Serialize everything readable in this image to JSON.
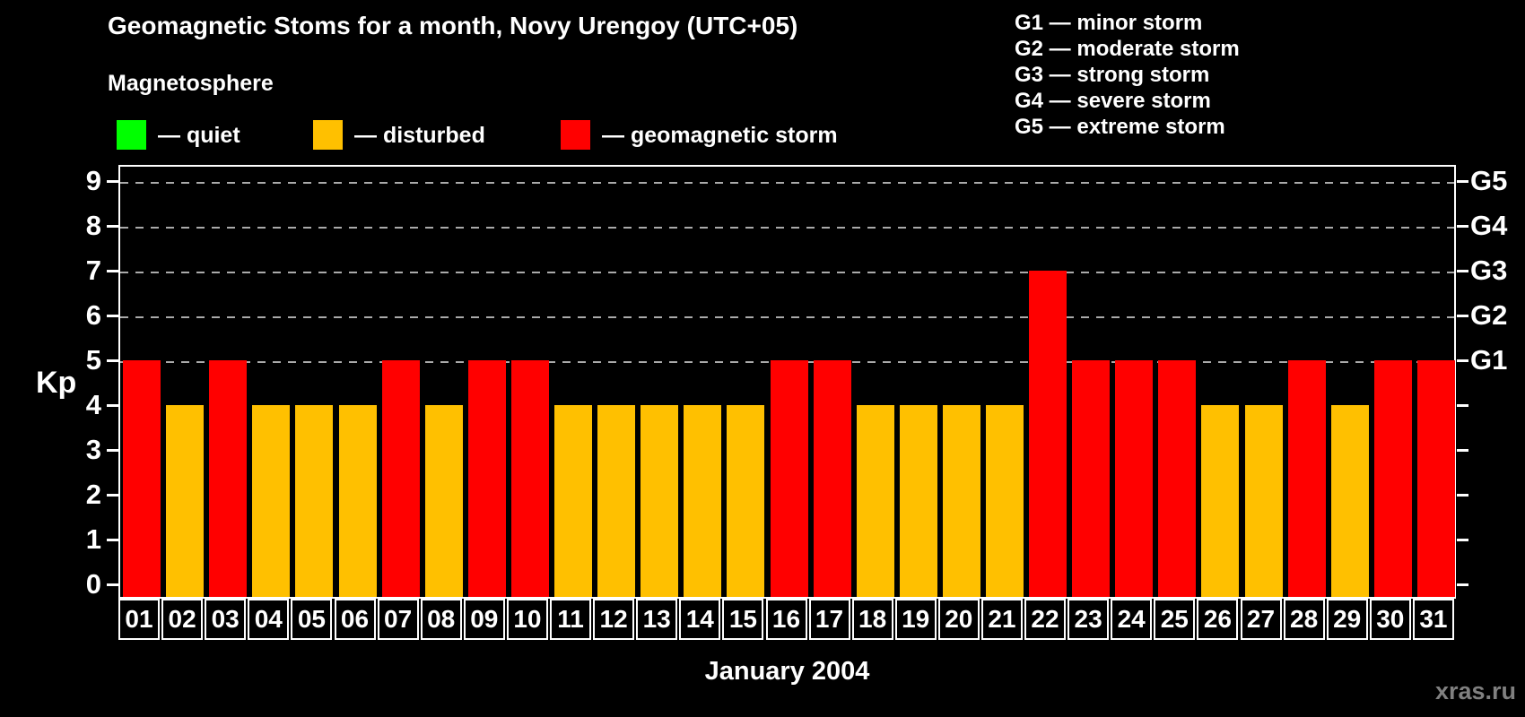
{
  "title": "Geomagnetic Stoms for a month, Novy Urengoy (UTC+05)",
  "legend": {
    "heading": "Magnetosphere",
    "items": [
      {
        "key": "quiet",
        "label": "— quiet"
      },
      {
        "key": "disturbed",
        "label": "— disturbed"
      },
      {
        "key": "storm",
        "label": "— geomagnetic storm"
      }
    ]
  },
  "g_scale_legend": [
    "G1 — minor storm",
    "G2 — moderate storm",
    "G3 — strong storm",
    "G4 — severe storm",
    "G5 — extreme storm"
  ],
  "axes": {
    "y_left_label": "Kp",
    "y_left_ticks": [
      0,
      1,
      2,
      3,
      4,
      5,
      6,
      7,
      8,
      9
    ],
    "y_right_labels": [
      {
        "label": "G1",
        "kp": 5
      },
      {
        "label": "G2",
        "kp": 6
      },
      {
        "label": "G3",
        "kp": 7
      },
      {
        "label": "G4",
        "kp": 8
      },
      {
        "label": "G5",
        "kp": 9
      }
    ],
    "x_title": "January 2004"
  },
  "watermark": "xras.ru",
  "colors": {
    "background": "#000000",
    "text": "#ffffff",
    "grid": "#aaaaaa",
    "quiet": "#00ff00",
    "disturbed": "#ffc000",
    "storm": "#ff0000",
    "watermark": "#808080"
  },
  "chart_data": {
    "type": "bar",
    "title": "Geomagnetic Stoms for a month, Novy Urengoy (UTC+05)",
    "xlabel": "January 2004",
    "ylabel": "Kp",
    "ylim": [
      0,
      9
    ],
    "grid": "horizontal dashed at Kp 5-9 (G1-G5)",
    "legend_position": "top-left",
    "categories": [
      "01",
      "02",
      "03",
      "04",
      "05",
      "06",
      "07",
      "08",
      "09",
      "10",
      "11",
      "12",
      "13",
      "14",
      "15",
      "16",
      "17",
      "18",
      "19",
      "20",
      "21",
      "22",
      "23",
      "24",
      "25",
      "26",
      "27",
      "28",
      "29",
      "30",
      "31"
    ],
    "values": [
      5,
      4,
      5,
      4,
      4,
      4,
      5,
      4,
      5,
      5,
      4,
      4,
      4,
      4,
      4,
      5,
      5,
      4,
      4,
      4,
      4,
      7,
      5,
      5,
      5,
      4,
      4,
      5,
      4,
      5,
      5
    ],
    "statuses": [
      "storm",
      "disturbed",
      "storm",
      "disturbed",
      "disturbed",
      "disturbed",
      "storm",
      "disturbed",
      "storm",
      "storm",
      "disturbed",
      "disturbed",
      "disturbed",
      "disturbed",
      "disturbed",
      "storm",
      "storm",
      "disturbed",
      "disturbed",
      "disturbed",
      "disturbed",
      "storm",
      "storm",
      "storm",
      "storm",
      "disturbed",
      "disturbed",
      "storm",
      "disturbed",
      "storm",
      "storm"
    ]
  }
}
